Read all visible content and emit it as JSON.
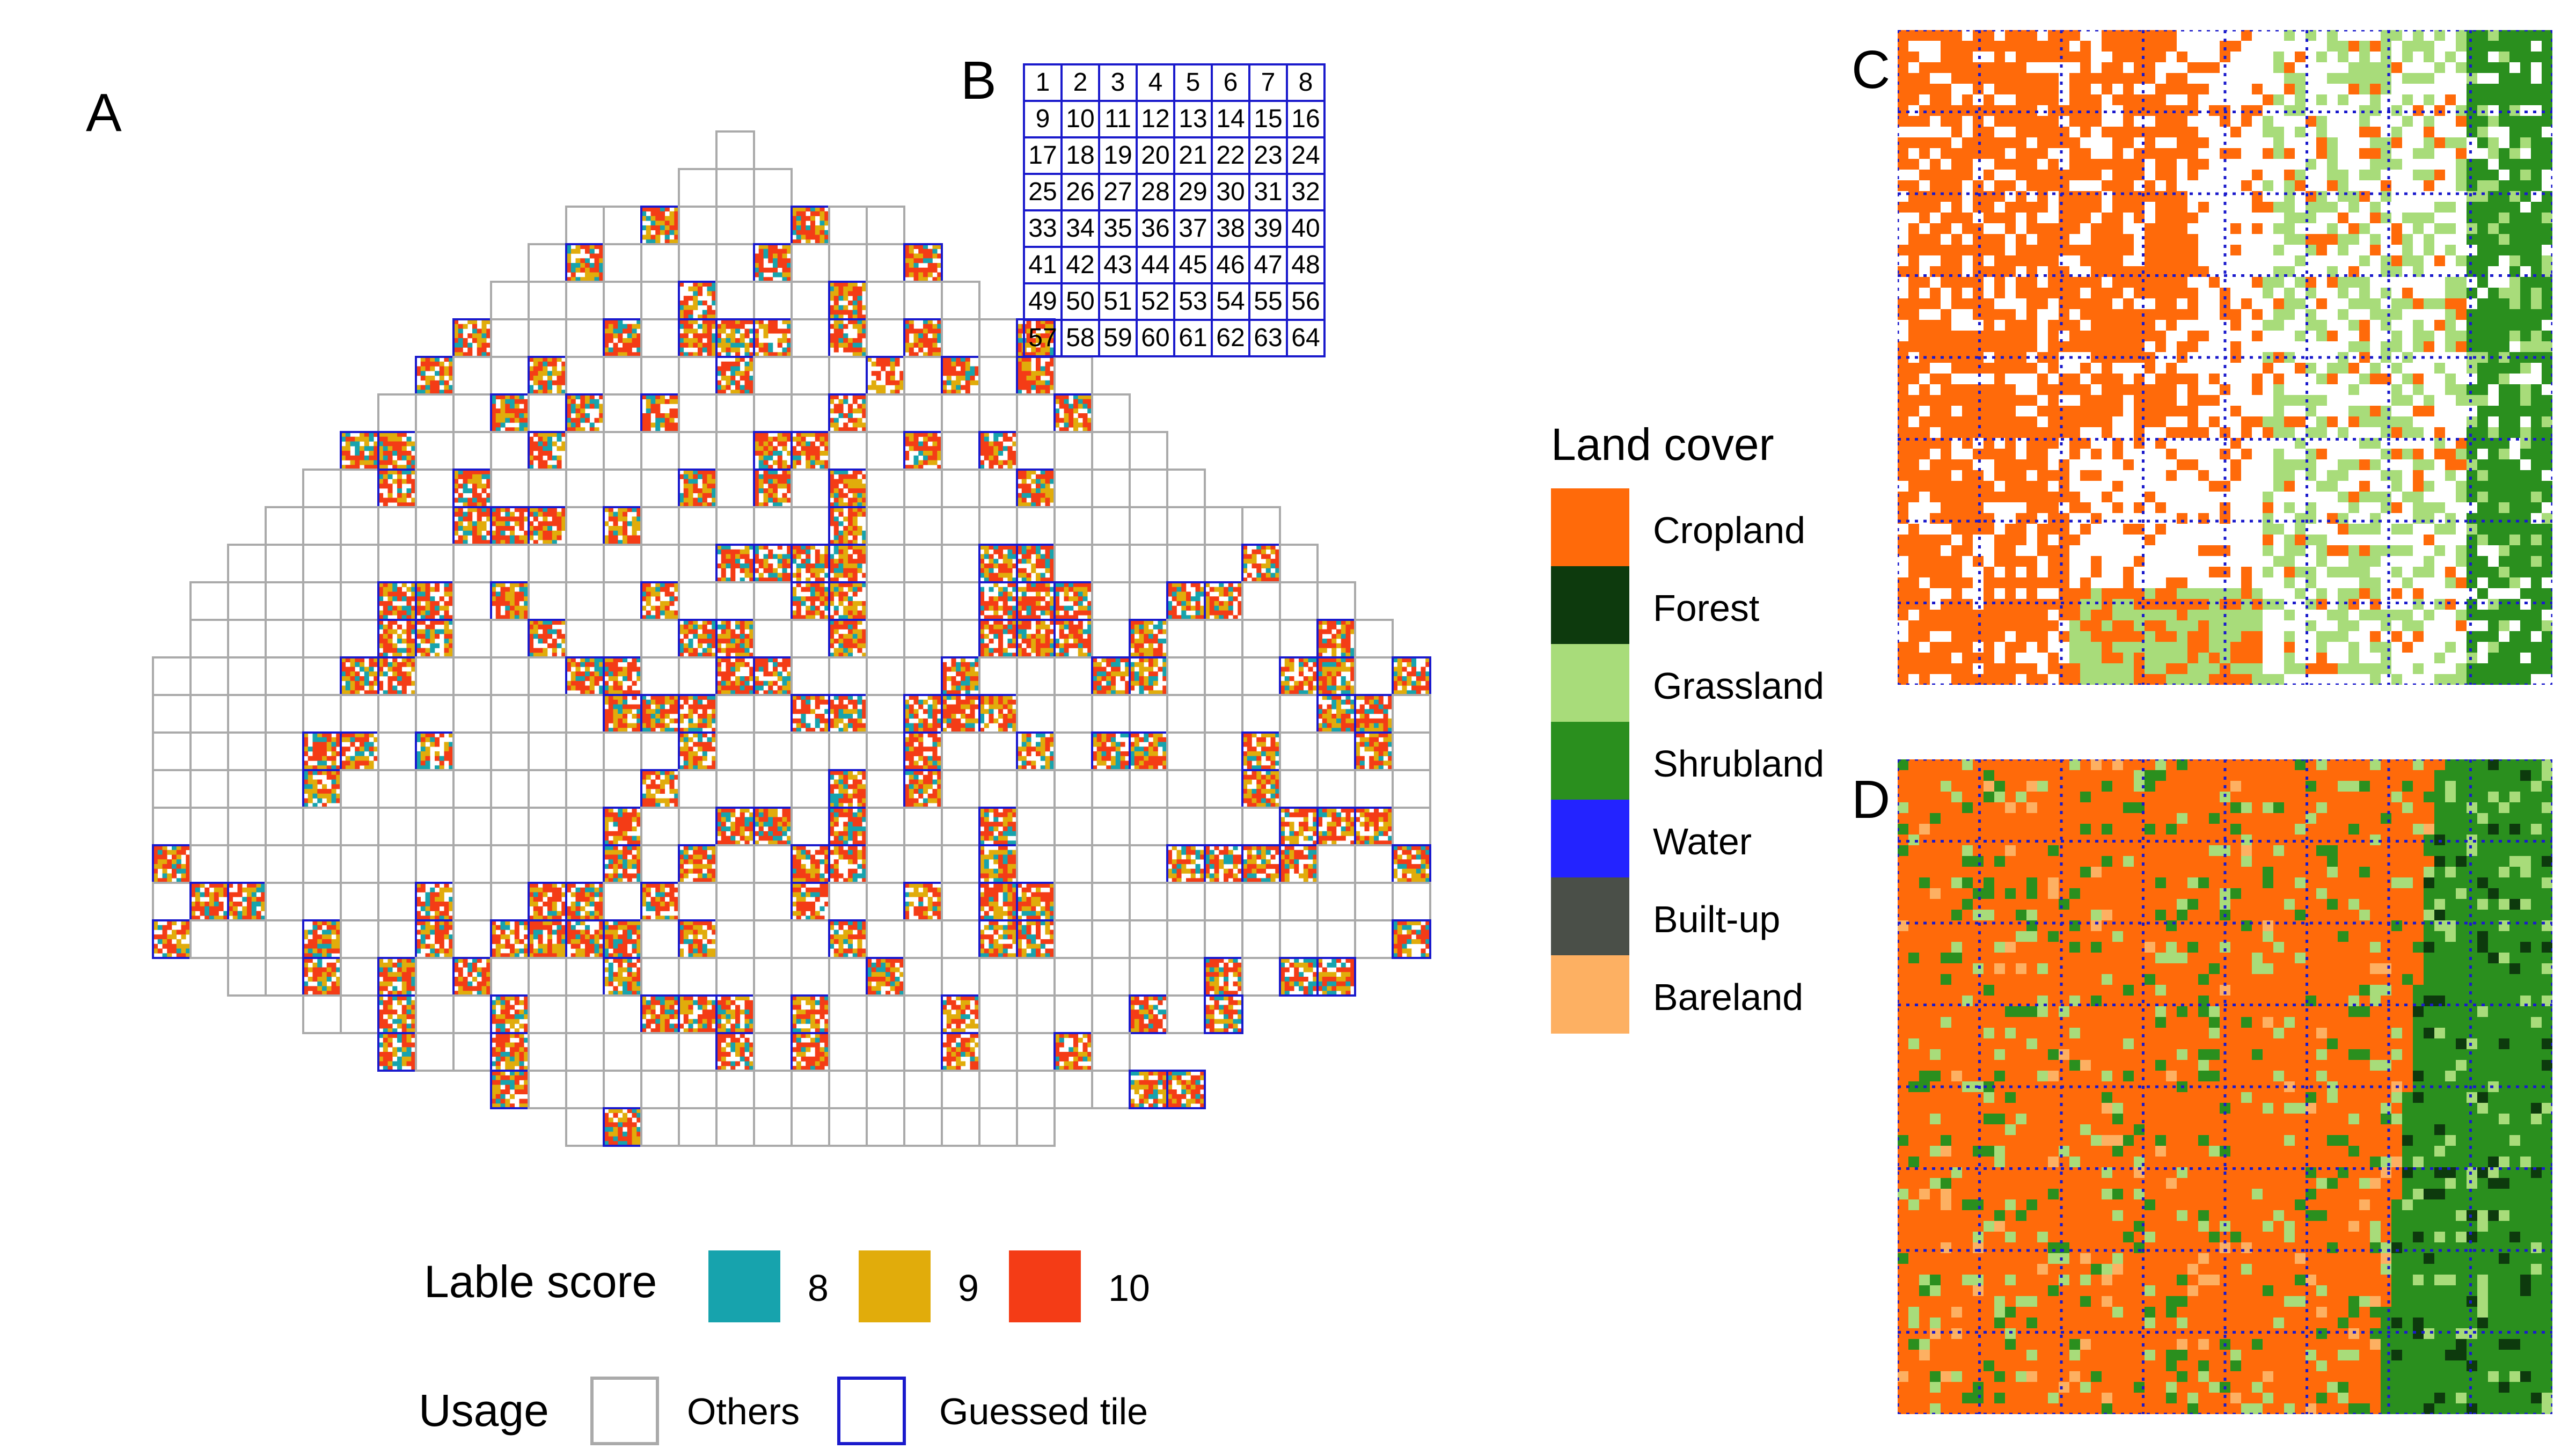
{
  "panels": {
    "a": "A",
    "b": "B",
    "c": "C",
    "d": "D"
  },
  "grid_b": {
    "rows": [
      [
        "1",
        "2",
        "3",
        "4",
        "5",
        "6",
        "7",
        "8"
      ],
      [
        "9",
        "10",
        "11",
        "12",
        "13",
        "14",
        "15",
        "16"
      ],
      [
        "17",
        "18",
        "19",
        "20",
        "21",
        "22",
        "23",
        "24"
      ],
      [
        "25",
        "26",
        "27",
        "28",
        "29",
        "30",
        "31",
        "32"
      ],
      [
        "33",
        "34",
        "35",
        "36",
        "37",
        "38",
        "39",
        "40"
      ],
      [
        "41",
        "42",
        "43",
        "44",
        "45",
        "46",
        "47",
        "48"
      ],
      [
        "49",
        "50",
        "51",
        "52",
        "53",
        "54",
        "55",
        "56"
      ],
      [
        "57",
        "58",
        "59",
        "60",
        "61",
        "62",
        "63",
        "64"
      ]
    ]
  },
  "land_cover_legend": {
    "title": "Land cover",
    "items": [
      {
        "label": "Cropland",
        "color": "#ff6a0a"
      },
      {
        "label": "Forest",
        "color": "#0d3a0d"
      },
      {
        "label": "Grassland",
        "color": "#a8dc7a"
      },
      {
        "label": "Shrubland",
        "color": "#2a8f1e"
      },
      {
        "label": "Water",
        "color": "#2323ff"
      },
      {
        "label": "Built-up",
        "color": "#4a4f48"
      },
      {
        "label": "Bareland",
        "color": "#fdb062"
      }
    ]
  },
  "score_legend": {
    "title": "Lable score",
    "items": [
      {
        "label": "8",
        "color": "#17a3ad"
      },
      {
        "label": "9",
        "color": "#e1ac0b"
      },
      {
        "label": "10",
        "color": "#f43c16"
      }
    ]
  },
  "usage_legend": {
    "title": "Usage",
    "items": [
      {
        "label": "Others",
        "border": "#aaaaaa"
      },
      {
        "label": "Guessed tile",
        "border": "#1a1acc"
      }
    ]
  }
}
